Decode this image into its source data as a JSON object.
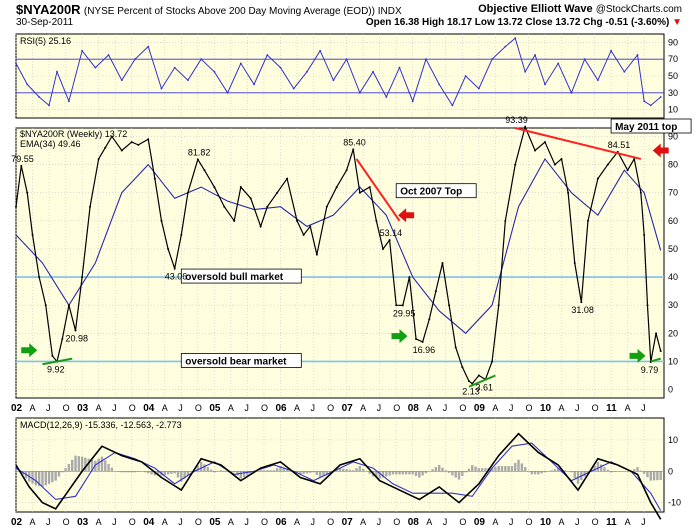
{
  "header": {
    "symbol": "$NYA200R",
    "description": "(NYSE Percent of Stocks Above 200 Day Moving Average (EOD)) INDX",
    "brand": "Objective Elliott Wave",
    "source": "@StockCharts.com",
    "date": "30-Sep-2011",
    "ohlc": "Open 16.38  High 18.17  Low 13.72  Close 13.72  Chg -0.51 (-3.60%)",
    "chg_arrow": "▼"
  },
  "colors": {
    "background": "#ffffe0",
    "grid": "#c8c8c8",
    "price": "#000000",
    "ema": "#2a2aa8",
    "rsi": "#3333cc",
    "macd": "#000000",
    "signal": "#3333cc",
    "histogram": "#aaaaaa",
    "horizontal_line": "#7ec0ee",
    "trend_red": "#ff2020",
    "trend_green": "#1a9a1a",
    "label_box": "#ffffff",
    "label_text": "#0000cc"
  },
  "chart_data": [
    {
      "type": "line",
      "panel": "rsi",
      "legend": "RSI(5) 25.16",
      "ylim": [
        0,
        100
      ],
      "yticks": [
        10,
        30,
        50,
        70,
        90
      ],
      "levels": [
        30,
        70
      ],
      "series": [
        {
          "name": "RSI(5)",
          "x": [
            2002.0,
            2002.17,
            2002.35,
            2002.5,
            2002.62,
            2002.8,
            2003.0,
            2003.2,
            2003.4,
            2003.6,
            2003.8,
            2004.0,
            2004.2,
            2004.4,
            2004.6,
            2004.8,
            2005.0,
            2005.2,
            2005.4,
            2005.6,
            2005.8,
            2006.0,
            2006.2,
            2006.4,
            2006.6,
            2006.8,
            2007.0,
            2007.2,
            2007.4,
            2007.6,
            2007.8,
            2008.0,
            2008.2,
            2008.4,
            2008.6,
            2008.8,
            2009.0,
            2009.2,
            2009.4,
            2009.55,
            2009.7,
            2009.85,
            2010.0,
            2010.2,
            2010.4,
            2010.6,
            2010.8,
            2011.0,
            2011.2,
            2011.4,
            2011.5,
            2011.6,
            2011.75
          ],
          "values": [
            65,
            40,
            25,
            15,
            55,
            20,
            80,
            60,
            75,
            45,
            70,
            85,
            35,
            60,
            45,
            70,
            55,
            30,
            65,
            40,
            75,
            60,
            35,
            55,
            80,
            45,
            70,
            30,
            55,
            25,
            60,
            20,
            70,
            40,
            15,
            50,
            35,
            70,
            85,
            95,
            55,
            75,
            40,
            65,
            30,
            70,
            45,
            80,
            55,
            75,
            20,
            15,
            25
          ]
        }
      ]
    },
    {
      "type": "line",
      "panel": "price",
      "legend": [
        "$NYA200R (Weekly) 13.72",
        "EMA(34) 49.46"
      ],
      "ylim": [
        -3,
        93
      ],
      "yticks": [
        0,
        10,
        20,
        30,
        40,
        50,
        60,
        70,
        80,
        90
      ],
      "xlim": [
        2002.0,
        2011.8
      ],
      "xticks": [
        {
          "x": 2002.0,
          "label": "02"
        },
        {
          "x": 2002.25,
          "label": "A"
        },
        {
          "x": 2002.5,
          "label": "J"
        },
        {
          "x": 2002.75,
          "label": "O"
        },
        {
          "x": 2003.0,
          "label": "03"
        },
        {
          "x": 2003.25,
          "label": "A"
        },
        {
          "x": 2003.5,
          "label": "J"
        },
        {
          "x": 2003.75,
          "label": "O"
        },
        {
          "x": 2004.0,
          "label": "04"
        },
        {
          "x": 2004.25,
          "label": "A"
        },
        {
          "x": 2004.5,
          "label": "J"
        },
        {
          "x": 2004.75,
          "label": "O"
        },
        {
          "x": 2005.0,
          "label": "05"
        },
        {
          "x": 2005.25,
          "label": "A"
        },
        {
          "x": 2005.5,
          "label": "J"
        },
        {
          "x": 2005.75,
          "label": "O"
        },
        {
          "x": 2006.0,
          "label": "06"
        },
        {
          "x": 2006.25,
          "label": "A"
        },
        {
          "x": 2006.5,
          "label": "J"
        },
        {
          "x": 2006.75,
          "label": "O"
        },
        {
          "x": 2007.0,
          "label": "07"
        },
        {
          "x": 2007.25,
          "label": "A"
        },
        {
          "x": 2007.5,
          "label": "J"
        },
        {
          "x": 2007.75,
          "label": "O"
        },
        {
          "x": 2008.0,
          "label": "08"
        },
        {
          "x": 2008.25,
          "label": "A"
        },
        {
          "x": 2008.5,
          "label": "J"
        },
        {
          "x": 2008.75,
          "label": "O"
        },
        {
          "x": 2009.0,
          "label": "09"
        },
        {
          "x": 2009.25,
          "label": "A"
        },
        {
          "x": 2009.5,
          "label": "J"
        },
        {
          "x": 2009.75,
          "label": "O"
        },
        {
          "x": 2010.0,
          "label": "10"
        },
        {
          "x": 2010.25,
          "label": "A"
        },
        {
          "x": 2010.5,
          "label": "J"
        },
        {
          "x": 2010.75,
          "label": "O"
        },
        {
          "x": 2011.0,
          "label": "11"
        },
        {
          "x": 2011.25,
          "label": "A"
        },
        {
          "x": 2011.5,
          "label": "J"
        }
      ],
      "series": [
        {
          "name": "$NYA200R (Weekly)",
          "x": [
            2002.0,
            2002.08,
            2002.17,
            2002.25,
            2002.35,
            2002.45,
            2002.55,
            2002.62,
            2002.7,
            2002.8,
            2002.9,
            2003.0,
            2003.12,
            2003.25,
            2003.35,
            2003.45,
            2003.6,
            2003.75,
            2003.85,
            2004.0,
            2004.1,
            2004.2,
            2004.3,
            2004.4,
            2004.5,
            2004.6,
            2004.75,
            2004.85,
            2005.0,
            2005.15,
            2005.3,
            2005.4,
            2005.55,
            2005.7,
            2005.8,
            2005.95,
            2006.1,
            2006.25,
            2006.35,
            2006.45,
            2006.55,
            2006.7,
            2006.85,
            2007.0,
            2007.1,
            2007.2,
            2007.35,
            2007.45,
            2007.55,
            2007.65,
            2007.75,
            2007.85,
            2007.95,
            2008.05,
            2008.15,
            2008.25,
            2008.35,
            2008.45,
            2008.55,
            2008.65,
            2008.75,
            2008.85,
            2008.9,
            2009.0,
            2009.1,
            2009.2,
            2009.3,
            2009.4,
            2009.55,
            2009.7,
            2009.85,
            2010.0,
            2010.15,
            2010.25,
            2010.35,
            2010.45,
            2010.55,
            2010.65,
            2010.8,
            2010.95,
            2011.1,
            2011.25,
            2011.35,
            2011.45,
            2011.5,
            2011.55,
            2011.6,
            2011.68,
            2011.75
          ],
          "values": [
            65,
            79.55,
            70,
            55,
            40,
            30,
            12,
            9.92,
            18,
            30,
            20.98,
            40,
            65,
            82,
            86,
            90,
            85,
            88,
            87,
            89,
            75,
            60,
            50,
            43.06,
            55,
            70,
            81.82,
            78,
            72,
            65,
            60,
            72,
            68,
            58,
            65,
            70,
            75,
            60,
            55,
            58,
            48,
            65,
            72,
            78,
            85.4,
            70,
            72,
            60,
            50,
            53.14,
            30,
            29.95,
            40,
            18,
            16.96,
            25,
            35,
            45,
            30,
            15,
            8,
            3,
            2.13,
            5,
            3.61,
            10,
            30,
            60,
            80,
            93.39,
            85,
            88,
            80,
            82,
            70,
            45,
            31.08,
            60,
            75,
            80,
            84.51,
            78,
            82,
            70,
            55,
            30,
            9.79,
            20,
            13.72
          ]
        },
        {
          "name": "EMA(34)",
          "x": [
            2002.0,
            2002.4,
            2002.8,
            2003.2,
            2003.6,
            2004.0,
            2004.4,
            2004.8,
            2005.2,
            2005.6,
            2006.0,
            2006.4,
            2006.8,
            2007.2,
            2007.6,
            2008.0,
            2008.4,
            2008.8,
            2009.2,
            2009.6,
            2010.0,
            2010.4,
            2010.8,
            2011.2,
            2011.5,
            2011.75
          ],
          "values": [
            55,
            45,
            30,
            45,
            70,
            80,
            68,
            72,
            67,
            64,
            65,
            58,
            62,
            72,
            62,
            40,
            28,
            20,
            30,
            65,
            82,
            70,
            62,
            78,
            70,
            49.46
          ]
        }
      ],
      "annotations": [
        {
          "text": "79.55",
          "x": 2002.08,
          "y": 79.55
        },
        {
          "text": "9.92",
          "x": 2002.62,
          "y": 9.92
        },
        {
          "text": "20.98",
          "x": 2002.9,
          "y": 20.98
        },
        {
          "text": "43.06",
          "x": 2004.4,
          "y": 43.06
        },
        {
          "text": "81.82",
          "x": 2004.75,
          "y": 81.82
        },
        {
          "text": "85.40",
          "x": 2007.1,
          "y": 85.4
        },
        {
          "text": "53.14",
          "x": 2007.65,
          "y": 53.14
        },
        {
          "text": "29.95",
          "x": 2007.85,
          "y": 29.95
        },
        {
          "text": "16.96",
          "x": 2008.15,
          "y": 16.96
        },
        {
          "text": "2.13",
          "x": 2008.9,
          "y": 2.13
        },
        {
          "text": "3.61",
          "x": 2009.1,
          "y": 3.61
        },
        {
          "text": "93.39",
          "x": 2009.55,
          "y": 93.39
        },
        {
          "text": "31.08",
          "x": 2010.55,
          "y": 31.08
        },
        {
          "text": "84.51",
          "x": 2011.1,
          "y": 84.51
        },
        {
          "text": "9.79",
          "x": 2011.6,
          "y": 9.79
        }
      ],
      "horizontal_lines": [
        {
          "y": 40,
          "label": "oversold bull market"
        },
        {
          "y": 10,
          "label": "oversold bear market"
        }
      ],
      "callouts": [
        {
          "text": "Oct 2007 Top",
          "x": 2007.75,
          "y": 70
        },
        {
          "text": "May 2011 top",
          "x": 2011.0,
          "y": 93
        }
      ],
      "trendlines": [
        {
          "color": "red",
          "from": [
            2007.15,
            82
          ],
          "to": [
            2007.8,
            60
          ]
        },
        {
          "color": "red",
          "from": [
            2009.55,
            93
          ],
          "to": [
            2011.45,
            82
          ]
        },
        {
          "color": "green",
          "from": [
            2002.4,
            9
          ],
          "to": [
            2002.85,
            11
          ]
        },
        {
          "color": "green",
          "from": [
            2008.85,
            1
          ],
          "to": [
            2009.25,
            5
          ]
        },
        {
          "color": "green",
          "from": [
            2011.6,
            10
          ],
          "to": [
            2011.75,
            11
          ]
        }
      ],
      "arrows": [
        {
          "color": "green",
          "direction": "right",
          "x": 2002.2,
          "y": 14
        },
        {
          "color": "green",
          "direction": "right",
          "x": 2007.8,
          "y": 19
        },
        {
          "color": "green",
          "direction": "right",
          "x": 2011.4,
          "y": 12
        },
        {
          "color": "red",
          "direction": "left",
          "x": 2007.9,
          "y": 62
        },
        {
          "color": "red",
          "direction": "left",
          "x": 2011.75,
          "y": 85
        }
      ]
    },
    {
      "type": "line",
      "panel": "macd",
      "legend": "MACD(12,26,9) -15.336, -12.563, -2.773",
      "ylim": [
        -13,
        17
      ],
      "yticks": [
        -10,
        0,
        10
      ],
      "series": [
        {
          "name": "MACD",
          "x": [
            2002.0,
            2002.2,
            2002.4,
            2002.6,
            2002.8,
            2003.0,
            2003.3,
            2003.6,
            2003.9,
            2004.2,
            2004.5,
            2004.8,
            2005.1,
            2005.4,
            2005.7,
            2006.0,
            2006.3,
            2006.6,
            2006.9,
            2007.2,
            2007.5,
            2007.8,
            2008.1,
            2008.4,
            2008.7,
            2009.0,
            2009.3,
            2009.6,
            2009.9,
            2010.2,
            2010.5,
            2010.8,
            2011.1,
            2011.4,
            2011.6,
            2011.75
          ],
          "values": [
            2,
            -5,
            -10,
            -12,
            -6,
            0,
            8,
            5,
            3,
            -2,
            -6,
            4,
            2,
            -3,
            1,
            3,
            -2,
            -4,
            2,
            4,
            -3,
            -6,
            -9,
            -5,
            -10,
            -4,
            5,
            12,
            6,
            2,
            -6,
            4,
            2,
            -1,
            -10,
            -15.336
          ]
        },
        {
          "name": "Signal",
          "x": [
            2002.0,
            2002.3,
            2002.6,
            2002.9,
            2003.2,
            2003.5,
            2003.8,
            2004.1,
            2004.4,
            2004.7,
            2005.0,
            2005.3,
            2005.6,
            2005.9,
            2006.2,
            2006.5,
            2006.8,
            2007.1,
            2007.4,
            2007.7,
            2008.0,
            2008.3,
            2008.6,
            2008.9,
            2009.2,
            2009.5,
            2009.8,
            2010.1,
            2010.4,
            2010.7,
            2011.0,
            2011.3,
            2011.6,
            2011.75
          ],
          "values": [
            1,
            -3,
            -9,
            -8,
            2,
            6,
            4,
            1,
            -4,
            0,
            3,
            -1,
            0,
            2,
            0,
            -3,
            0,
            3,
            1,
            -4,
            -7,
            -7,
            -7,
            -8,
            1,
            8,
            9,
            3,
            -3,
            0,
            3,
            0,
            -7,
            -12.563
          ]
        }
      ],
      "histogram_last": -2.773
    }
  ]
}
